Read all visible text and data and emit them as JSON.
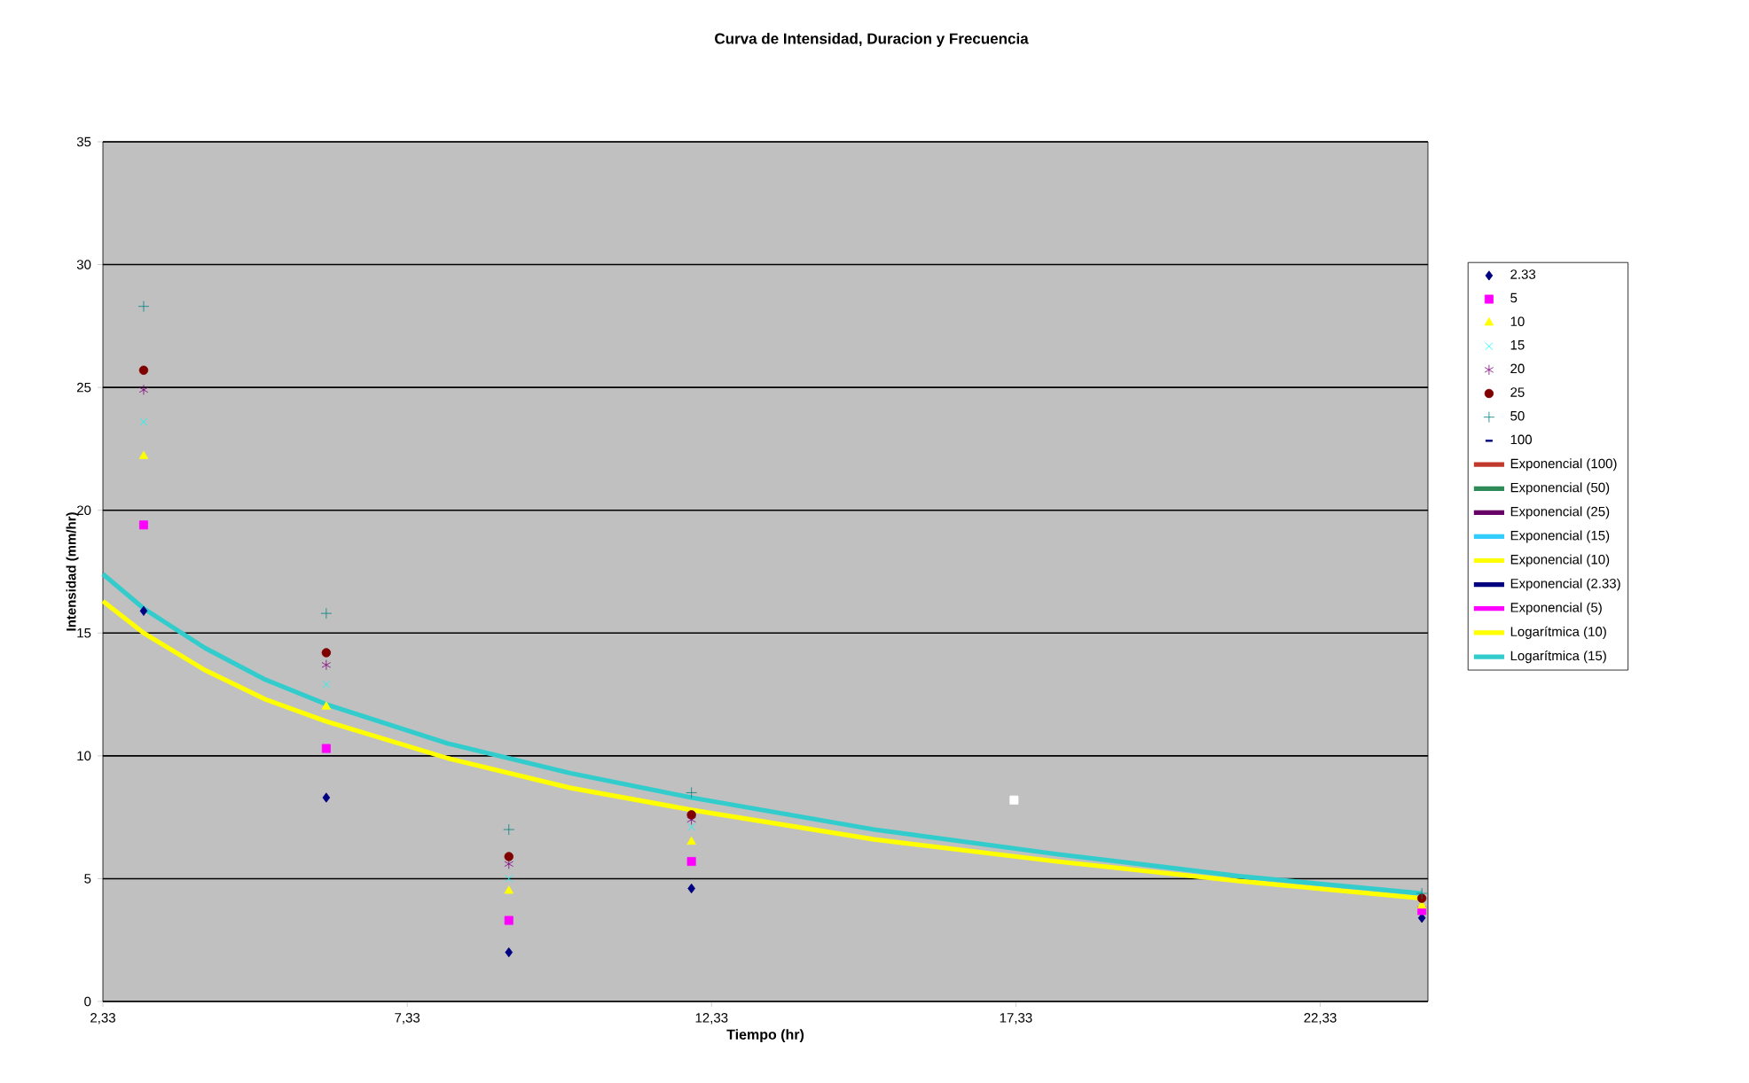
{
  "chart_data": {
    "type": "scatter",
    "title": "Curva de Intensidad, Duracion y Frecuencia",
    "xlabel": "Tiempo (hr)",
    "ylabel": "Intensidad (mm/hr)",
    "x": [
      3,
      6,
      9,
      12,
      24
    ],
    "xlim": [
      2.33,
      24.1
    ],
    "ylim": [
      0,
      35
    ],
    "xticks": [
      {
        "value": 2.33,
        "label": "2,33"
      },
      {
        "value": 7.33,
        "label": "7,33"
      },
      {
        "value": 12.33,
        "label": "12,33"
      },
      {
        "value": 17.33,
        "label": "17,33"
      },
      {
        "value": 22.33,
        "label": "22,33"
      }
    ],
    "yticks": [
      0,
      5,
      10,
      15,
      20,
      25,
      30,
      35
    ],
    "grid": "y",
    "legend": "right",
    "series": [
      {
        "name": "2.33",
        "color": "#000080",
        "marker": "diamond",
        "values": [
          15.9,
          8.3,
          2.0,
          4.6,
          3.4
        ]
      },
      {
        "name": "5",
        "color": "#ff00ff",
        "marker": "square",
        "values": [
          19.4,
          10.3,
          3.3,
          5.7,
          3.7
        ]
      },
      {
        "name": "10",
        "color": "#ffff00",
        "marker": "triangle",
        "values": [
          22.2,
          12.0,
          4.5,
          6.5,
          3.9
        ]
      },
      {
        "name": "15",
        "color": "#00ffff",
        "marker": "x",
        "values": [
          23.6,
          12.9,
          5.0,
          7.1,
          null
        ]
      },
      {
        "name": "20",
        "color": "#800080",
        "marker": "cross",
        "values": [
          24.9,
          13.7,
          5.6,
          7.4,
          null
        ]
      },
      {
        "name": "25",
        "color": "#800000",
        "marker": "circle",
        "values": [
          25.7,
          14.2,
          5.9,
          7.6,
          4.2
        ]
      },
      {
        "name": "50",
        "color": "#008080",
        "marker": "plus",
        "values": [
          28.3,
          15.8,
          7.0,
          8.5,
          4.4
        ]
      },
      {
        "name": "100",
        "color": "#000080",
        "values": [
          null,
          null,
          null,
          null,
          null
        ]
      },
      {
        "name": "Exponencial (100)",
        "color": "#c0392b",
        "type": "line",
        "line_style": "solid",
        "values": [
          null,
          null,
          null,
          null,
          null
        ]
      },
      {
        "name": "Exponencial (50)",
        "color": "#2e8b57",
        "type": "line",
        "line_style": "solid",
        "values": [
          null,
          null,
          null,
          null,
          null
        ]
      },
      {
        "name": "Exponencial (25)",
        "color": "#660066",
        "type": "line",
        "line_style": "solid",
        "values": [
          null,
          null,
          null,
          null,
          null
        ]
      },
      {
        "name": "Exponencial (15)",
        "color": "#33ccff",
        "type": "line",
        "line_style": "solid",
        "values": [
          null,
          null,
          null,
          null,
          null
        ]
      },
      {
        "name": "Exponencial (10)",
        "color": "#ffff00",
        "type": "line",
        "line_style": "solid",
        "values": [
          null,
          null,
          null,
          null,
          null
        ]
      },
      {
        "name": "Exponencial (2.33)",
        "color": "#000080",
        "type": "line",
        "line_style": "solid",
        "values": [
          null,
          null,
          null,
          null,
          null
        ]
      },
      {
        "name": "Exponencial (5)",
        "color": "#ff00ff",
        "type": "line",
        "line_style": "solid",
        "values": [
          null,
          null,
          null,
          null,
          null
        ]
      },
      {
        "name": "Logarítmica (10)",
        "color": "#ffff00",
        "type": "line",
        "line_style": "solid",
        "x": [
          2.33,
          3,
          4,
          5,
          6,
          8,
          10,
          12,
          15,
          18,
          21,
          24
        ],
        "values": [
          16.3,
          15.0,
          13.5,
          12.3,
          11.4,
          9.9,
          8.7,
          7.8,
          6.6,
          5.7,
          4.9,
          4.2
        ]
      },
      {
        "name": "Logarítmica (15)",
        "color": "#33cccc",
        "type": "line",
        "line_style": "solid",
        "x": [
          2.33,
          3,
          4,
          5,
          6,
          8,
          10,
          12,
          15,
          18,
          21,
          24
        ],
        "values": [
          17.4,
          16.0,
          14.4,
          13.1,
          12.1,
          10.5,
          9.3,
          8.3,
          7.0,
          6.0,
          5.1,
          4.4
        ]
      },
      {
        "color": "#ffffff",
        "marker": "square",
        "x": [
          17.3
        ],
        "values": [
          8.2
        ]
      }
    ]
  }
}
